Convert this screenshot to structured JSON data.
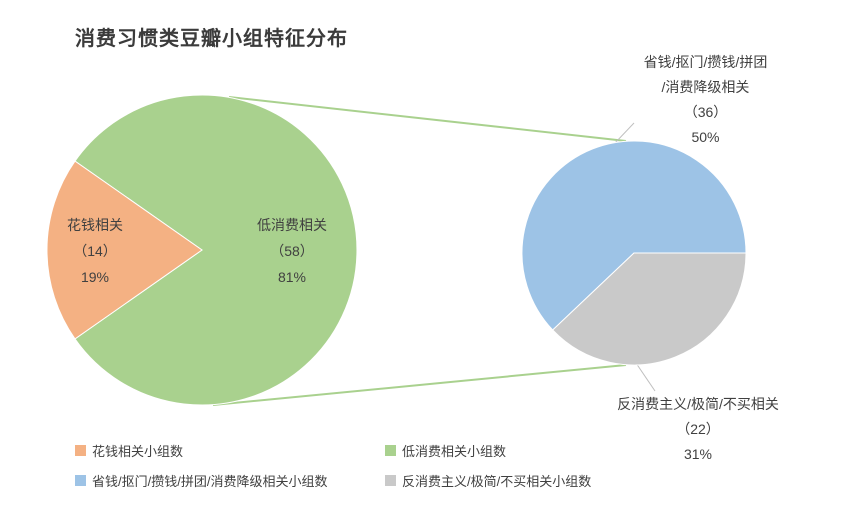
{
  "title": "消费习惯类豆瓣小组特征分布",
  "chart_data": {
    "type": "pie",
    "variant": "pie-of-pie",
    "title": "消费习惯类豆瓣小组特征分布",
    "legend_position": "bottom",
    "main_pie": {
      "slices": [
        {
          "name": "花钱相关",
          "count": 14,
          "percent": "19%",
          "color": "#F4B183"
        },
        {
          "name": "低消费相关",
          "count": 58,
          "percent": "81%",
          "color": "#A9D18E"
        }
      ]
    },
    "secondary_pie": {
      "slices": [
        {
          "name": "省钱/抠门/攒钱/拼团/消费降级相关",
          "count": 36,
          "percent": "50%",
          "color": "#9DC3E6"
        },
        {
          "name": "反消费主义/极简/不买相关",
          "count": 22,
          "percent": "31%",
          "color": "#C9C9C9"
        }
      ]
    }
  },
  "labels": {
    "spend": {
      "line1": "花钱相关",
      "line2": "（14）",
      "line3": "19%"
    },
    "low": {
      "line1": "低消费相关",
      "line2": "（58）",
      "line3": "81%"
    },
    "save": {
      "line1": "省钱/抠门/攒钱/拼团",
      "line2": "/消费降级相关",
      "line3": "（36）",
      "line4": "50%"
    },
    "anti": {
      "line1": "反消费主义/极简/不买相关",
      "line2": "（22）",
      "line3": "31%"
    }
  },
  "legend": {
    "items": [
      {
        "label": "花钱相关小组数",
        "color": "#F4B183"
      },
      {
        "label": "低消费相关小组数",
        "color": "#A9D18E"
      },
      {
        "label": "省钱/抠门/攒钱/拼团/消费降级相关小组数",
        "color": "#9DC3E6"
      },
      {
        "label": "反消费主义/极简/不买相关小组数",
        "color": "#C9C9C9"
      }
    ]
  }
}
